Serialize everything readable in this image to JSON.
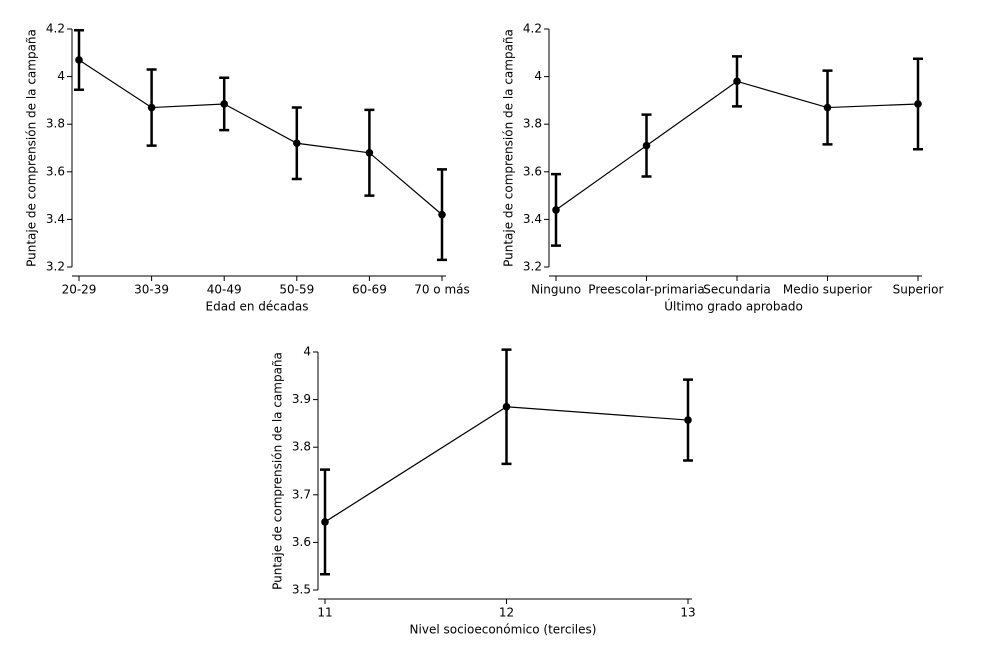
{
  "chart_data": [
    {
      "type": "line",
      "xlabel": "Edad en décadas",
      "ylabel": "Puntaje de comprensión de la campaña",
      "categories": [
        "20-29",
        "30-39",
        "40-49",
        "50-59",
        "60-69",
        "70 o más"
      ],
      "values": [
        4.07,
        3.87,
        3.885,
        3.72,
        3.68,
        3.42
      ],
      "errors": [
        0.125,
        0.16,
        0.11,
        0.15,
        0.18,
        0.19
      ],
      "color": "#000000",
      "ylim": [
        3.2,
        4.2
      ],
      "yticks": [
        3.2,
        3.4,
        3.6,
        3.8,
        4,
        4.2
      ]
    },
    {
      "type": "line",
      "xlabel": "Último grado aprobado",
      "ylabel": "Puntaje de comprensión de la campaña",
      "categories": [
        "Ninguno",
        "Preescolar-primaria",
        "Secundaria",
        "Medio superior",
        "Superior"
      ],
      "values": [
        3.44,
        3.71,
        3.98,
        3.87,
        3.885
      ],
      "errors": [
        0.15,
        0.13,
        0.105,
        0.155,
        0.19
      ],
      "color": "#000000",
      "ylim": [
        3.2,
        4.2
      ],
      "yticks": [
        3.2,
        3.4,
        3.6,
        3.8,
        4,
        4.2
      ]
    },
    {
      "type": "line",
      "xlabel": "Nivel socioeconómico (terciles)",
      "ylabel": "Puntaje de comprensión de la campaña",
      "x": [
        11,
        12,
        13
      ],
      "values": [
        3.643,
        3.885,
        3.857
      ],
      "errors": [
        0.11,
        0.12,
        0.085
      ],
      "color": "#000000",
      "xlim": [
        11,
        13
      ],
      "xticks": [
        11,
        12,
        13
      ],
      "ylim": [
        3.5,
        4
      ],
      "yticks": [
        3.5,
        3.6,
        3.7,
        3.8,
        3.9,
        4
      ]
    }
  ]
}
